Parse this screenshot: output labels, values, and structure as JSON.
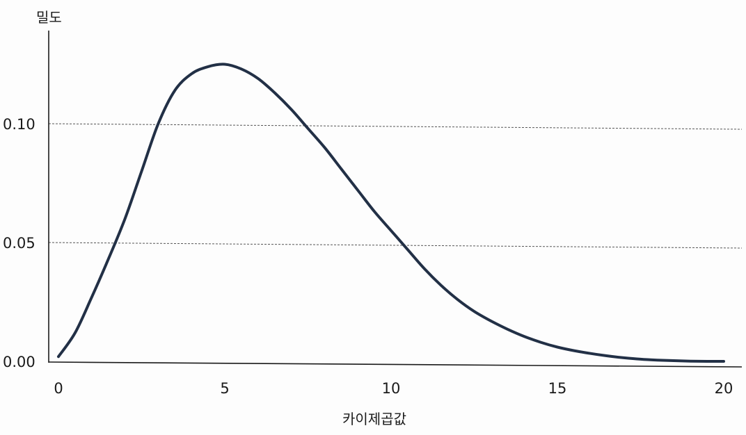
{
  "chart_data": {
    "type": "line",
    "title": "",
    "xlabel": "카이제곱값",
    "ylabel": "밀도",
    "xlim": [
      0,
      20
    ],
    "ylim": [
      0,
      0.125
    ],
    "x_ticks": [
      0,
      5,
      10,
      15,
      20
    ],
    "x_tick_labels": [
      "0",
      "5",
      "10",
      "15",
      "20"
    ],
    "y_ticks": [
      0.0,
      0.05,
      0.1
    ],
    "y_tick_labels": [
      "0.00",
      "0.05",
      "0.10"
    ],
    "grid": "horizontal dashed at 0.05 and 0.10",
    "legend": "none",
    "series": [
      {
        "x": [
          0,
          0.5,
          1,
          1.5,
          2,
          2.5,
          3,
          3.5,
          4,
          4.5,
          5,
          5.5,
          6,
          6.5,
          7,
          7.5,
          8,
          8.5,
          9,
          9.5,
          10,
          10.5,
          11,
          11.5,
          12,
          12.5,
          13,
          13.5,
          14,
          14.5,
          15,
          15.5,
          16,
          16.5,
          17,
          17.5,
          18,
          18.5,
          19,
          19.5,
          20
        ],
        "y": [
          0.002,
          0.012,
          0.027,
          0.043,
          0.06,
          0.08,
          0.1,
          0.114,
          0.121,
          0.124,
          0.125,
          0.123,
          0.119,
          0.113,
          0.106,
          0.098,
          0.09,
          0.081,
          0.072,
          0.063,
          0.055,
          0.047,
          0.039,
          0.032,
          0.026,
          0.021,
          0.017,
          0.0135,
          0.0105,
          0.008,
          0.006,
          0.0045,
          0.0033,
          0.0023,
          0.0015,
          0.0009,
          0.0005,
          0.0003,
          0.0001,
          0.0,
          0.0
        ]
      }
    ]
  },
  "colors": {
    "curve": "#223046",
    "axis": "#1a1a1a",
    "grid": "#555555",
    "background": "#fdfdfd"
  }
}
